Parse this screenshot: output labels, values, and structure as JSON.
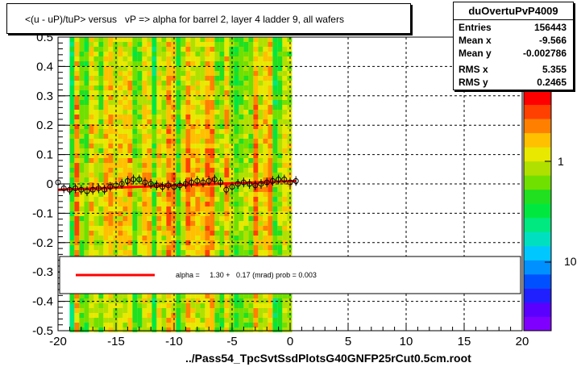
{
  "title": "<(u - uP)/tuP> versus   vP => alpha for barrel 2, layer 4 ladder 9, all wafers",
  "file_label": "../Pass54_TpcSvtSsdPlotsG40GNFP25rCut0.5cm.root",
  "stats": {
    "name": "duOvertuPvP4009",
    "rows": [
      {
        "key": "Entries",
        "value": "156443"
      },
      {
        "key": "Mean x",
        "value": "-9.566"
      },
      {
        "key": "Mean y",
        "value": "-0.002786"
      },
      {
        "key": "RMS x",
        "value": "5.355"
      },
      {
        "key": "RMS y",
        "value": "0.2465"
      }
    ]
  },
  "fit_legend": "alpha =     1.30 +   0.17 (mrad) prob = 0.003",
  "colors": {
    "fit_line": "#ff0000",
    "palette": [
      "#8000ff",
      "#5a00ff",
      "#2020ff",
      "#0050ff",
      "#0090ff",
      "#00c8ff",
      "#00e0c0",
      "#00e880",
      "#00e840",
      "#20e020",
      "#70e000",
      "#b0e000",
      "#e8e800",
      "#ffc000",
      "#ff8000",
      "#ff4000",
      "#ff0000"
    ]
  },
  "z_axis": {
    "tick_labels": [
      "1",
      "10"
    ]
  },
  "chart_data": {
    "type": "heatmap",
    "xlim": [
      -20,
      20
    ],
    "ylim": [
      -0.5,
      0.5
    ],
    "x_ticks": [
      "-20",
      "-15",
      "-10",
      "-5",
      "0",
      "5",
      "10",
      "15",
      "20"
    ],
    "y_ticks": [
      "-0.5",
      "-0.4",
      "-0.3",
      "-0.2",
      "-0.1",
      "0",
      "0.1",
      "0.2",
      "0.3",
      "0.4",
      "0.5"
    ],
    "grid": true,
    "occupied_x_range": [
      -19,
      0
    ],
    "profile": {
      "x": [
        -20,
        -19.5,
        -19,
        -18.5,
        -18,
        -17.5,
        -17,
        -16.5,
        -16,
        -15.5,
        -15,
        -14.5,
        -14,
        -13.5,
        -13,
        -12.5,
        -12,
        -11.5,
        -11,
        -10.5,
        -10,
        -9.5,
        -9,
        -8.5,
        -8,
        -7.5,
        -7,
        -6.5,
        -6,
        -5.5,
        -5,
        -4.5,
        -4,
        -3.5,
        -3,
        -2.5,
        -2,
        -1.5,
        -1,
        -0.5,
        0,
        0.5
      ],
      "y": [
        0.005,
        -0.015,
        -0.02,
        -0.015,
        -0.02,
        -0.025,
        -0.02,
        -0.015,
        -0.02,
        -0.01,
        -0.005,
        0,
        0.01,
        0.015,
        0.015,
        0.005,
        0,
        -0.005,
        -0.01,
        -0.005,
        -0.01,
        -0.005,
        0,
        0.005,
        0.01,
        0.005,
        0.01,
        0.015,
        0.005,
        -0.02,
        -0.01,
        0,
        0.005,
        0,
        -0.005,
        0,
        0.005,
        0.01,
        0.015,
        0.015,
        0.005,
        0.01
      ]
    },
    "fit": {
      "x": [
        -20,
        0.5
      ],
      "y": [
        -0.02,
        0.01
      ]
    }
  }
}
